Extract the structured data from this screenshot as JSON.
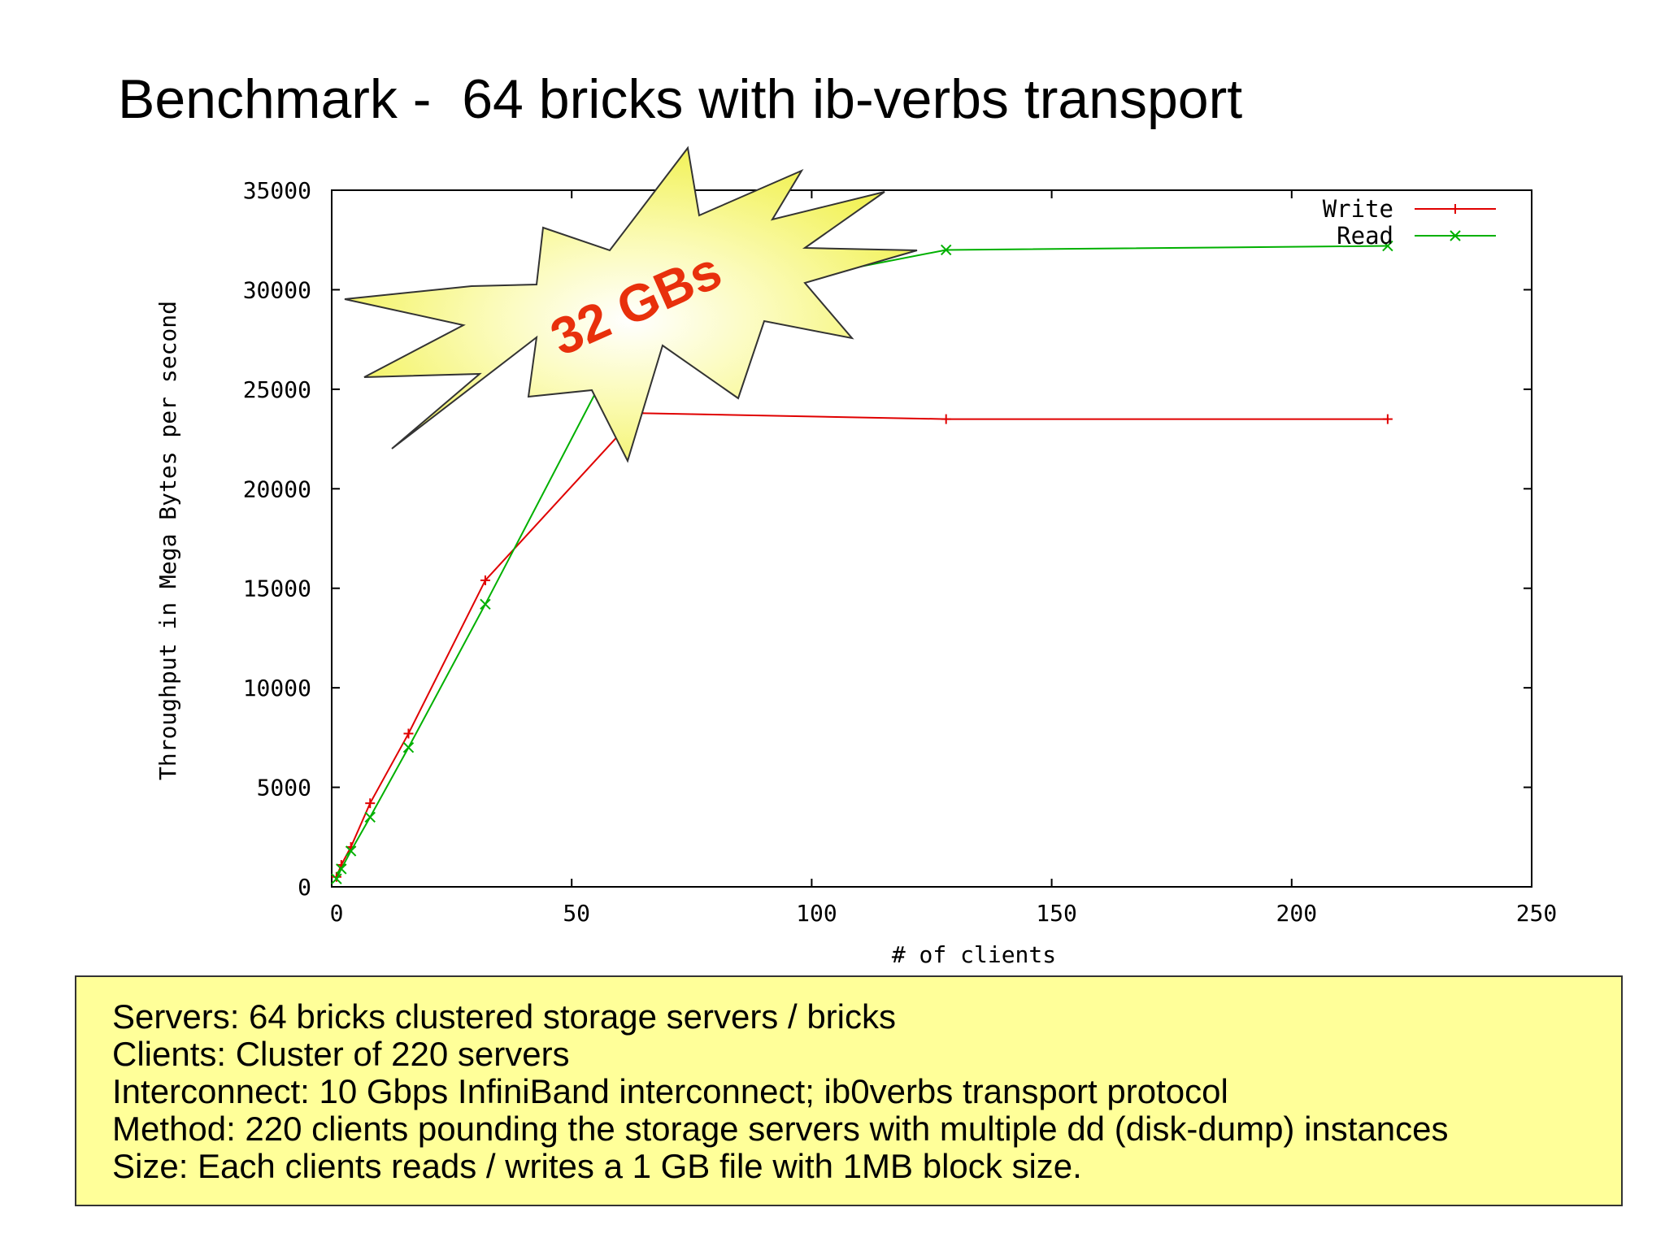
{
  "slide": {
    "title": "Benchmark -  64 bricks with ib-verbs transport"
  },
  "callout": {
    "text": "32 GBs",
    "fill_color": "#f8f878",
    "text_color": "#e8300c"
  },
  "chart_data": {
    "type": "line",
    "xlabel": "# of clients",
    "ylabel": "Throughput in Mega Bytes per second",
    "xlim": [
      0,
      250
    ],
    "ylim": [
      0,
      35000
    ],
    "xticks": [
      0,
      50,
      100,
      150,
      200,
      250
    ],
    "yticks": [
      0,
      5000,
      10000,
      15000,
      20000,
      25000,
      30000,
      35000
    ],
    "legend_position": "top-right",
    "grid": false,
    "series": [
      {
        "name": "Write",
        "color": "#e00000",
        "marker": "+",
        "x": [
          1,
          2,
          4,
          8,
          16,
          32,
          64,
          128,
          220
        ],
        "y": [
          500,
          1100,
          2000,
          4200,
          7700,
          15400,
          23800,
          23500,
          23500
        ]
      },
      {
        "name": "Read",
        "color": "#00b000",
        "marker": "x",
        "x": [
          1,
          2,
          4,
          8,
          16,
          32,
          64,
          128,
          220
        ],
        "y": [
          400,
          900,
          1800,
          3500,
          7000,
          14200,
          29000,
          32000,
          32200
        ]
      }
    ]
  },
  "info_box": {
    "lines": [
      "Servers: 64 bricks clustered storage servers / bricks",
      "Clients: Cluster of 220 servers",
      "Interconnect: 10 Gbps InfiniBand interconnect; ib0verbs transport protocol",
      "Method: 220 clients pounding the storage servers with multiple dd (disk-dump) instances",
      "Size: Each clients reads / writes a 1 GB file with 1MB block size."
    ],
    "background": "#ffff99"
  }
}
